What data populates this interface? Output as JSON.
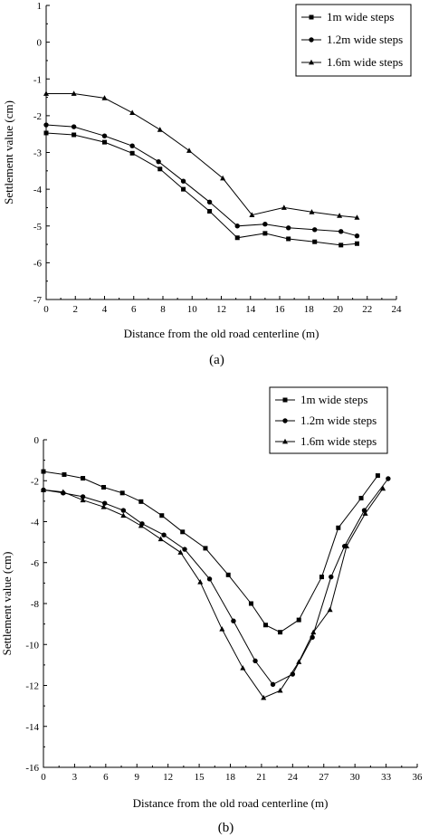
{
  "chart_data": [
    {
      "type": "line",
      "panel_label": "(a)",
      "xlabel": "Distance from the old road centerline (m)",
      "ylabel": "Settlement value (cm)",
      "xlim": [
        0,
        24
      ],
      "ylim": [
        -7,
        1
      ],
      "xticks": [
        0,
        2,
        4,
        6,
        8,
        10,
        12,
        14,
        16,
        18,
        20,
        22,
        24
      ],
      "yticks": [
        1,
        0,
        -1,
        -2,
        -3,
        -4,
        -5,
        -6,
        -7
      ],
      "legend_position": "top-right",
      "series": [
        {
          "name": "1m wide steps",
          "marker": "square",
          "points": [
            [
              0,
              -2.47
            ],
            [
              1.9,
              -2.52
            ],
            [
              4,
              -2.72
            ],
            [
              5.9,
              -3.02
            ],
            [
              7.8,
              -3.45
            ],
            [
              9.4,
              -4.0
            ],
            [
              11.2,
              -4.6
            ],
            [
              13.1,
              -5.32
            ],
            [
              15,
              -5.2
            ],
            [
              16.6,
              -5.35
            ],
            [
              18.4,
              -5.43
            ],
            [
              20.2,
              -5.52
            ],
            [
              21.3,
              -5.48
            ]
          ]
        },
        {
          "name": "1.2m wide steps",
          "marker": "circle",
          "points": [
            [
              0,
              -2.25
            ],
            [
              1.9,
              -2.3
            ],
            [
              4,
              -2.55
            ],
            [
              5.9,
              -2.82
            ],
            [
              7.7,
              -3.25
            ],
            [
              9.4,
              -3.78
            ],
            [
              11.2,
              -4.35
            ],
            [
              13.1,
              -5.0
            ],
            [
              15,
              -4.95
            ],
            [
              16.6,
              -5.05
            ],
            [
              18.4,
              -5.1
            ],
            [
              20.2,
              -5.15
            ],
            [
              21.3,
              -5.27
            ]
          ]
        },
        {
          "name": "1.6m wide steps",
          "marker": "triangle",
          "points": [
            [
              0,
              -1.4
            ],
            [
              1.9,
              -1.4
            ],
            [
              4,
              -1.52
            ],
            [
              5.9,
              -1.92
            ],
            [
              7.8,
              -2.38
            ],
            [
              9.8,
              -2.95
            ],
            [
              12.1,
              -3.7
            ],
            [
              14.1,
              -4.7
            ],
            [
              16.3,
              -4.5
            ],
            [
              18.2,
              -4.62
            ],
            [
              20.1,
              -4.72
            ],
            [
              21.3,
              -4.77
            ]
          ]
        }
      ]
    },
    {
      "type": "line",
      "panel_label": "(b)",
      "xlabel": "Distance from the old road centerline (m)",
      "ylabel": "Settlement value (cm)",
      "xlim": [
        0,
        36
      ],
      "ylim": [
        -16,
        0
      ],
      "xticks": [
        0,
        3,
        6,
        9,
        12,
        15,
        18,
        21,
        24,
        27,
        30,
        33,
        36
      ],
      "yticks": [
        0,
        -2,
        -4,
        -6,
        -8,
        -10,
        -12,
        -14,
        -16
      ],
      "legend_position": "top-right",
      "series": [
        {
          "name": "1m wide steps",
          "marker": "square",
          "points": [
            [
              0,
              -1.55
            ],
            [
              2,
              -1.7
            ],
            [
              3.8,
              -1.88
            ],
            [
              5.8,
              -2.32
            ],
            [
              7.6,
              -2.6
            ],
            [
              9.4,
              -3.02
            ],
            [
              11.4,
              -3.7
            ],
            [
              13.4,
              -4.5
            ],
            [
              15.6,
              -5.3
            ],
            [
              17.8,
              -6.6
            ],
            [
              20,
              -8.0
            ],
            [
              21.4,
              -9.05
            ],
            [
              22.8,
              -9.4
            ],
            [
              24.6,
              -8.8
            ],
            [
              26.8,
              -6.7
            ],
            [
              28.4,
              -4.3
            ],
            [
              30.6,
              -2.85
            ],
            [
              32.2,
              -1.75
            ]
          ]
        },
        {
          "name": "1.2m wide steps",
          "marker": "circle",
          "points": [
            [
              0,
              -2.45
            ],
            [
              1.9,
              -2.6
            ],
            [
              3.8,
              -2.78
            ],
            [
              5.9,
              -3.1
            ],
            [
              7.7,
              -3.45
            ],
            [
              9.5,
              -4.1
            ],
            [
              11.6,
              -4.65
            ],
            [
              13.6,
              -5.35
            ],
            [
              16,
              -6.8
            ],
            [
              18.3,
              -8.85
            ],
            [
              20.4,
              -10.8
            ],
            [
              22.1,
              -11.95
            ],
            [
              24,
              -11.45
            ],
            [
              25.9,
              -9.65
            ],
            [
              27.7,
              -6.7
            ],
            [
              29,
              -5.2
            ],
            [
              30.9,
              -3.45
            ],
            [
              33.2,
              -1.9
            ]
          ]
        },
        {
          "name": "1.6m wide steps",
          "marker": "triangle",
          "points": [
            [
              0,
              -2.45
            ],
            [
              1.9,
              -2.55
            ],
            [
              3.8,
              -2.95
            ],
            [
              5.8,
              -3.28
            ],
            [
              7.7,
              -3.7
            ],
            [
              9.4,
              -4.2
            ],
            [
              11.3,
              -4.85
            ],
            [
              13.2,
              -5.5
            ],
            [
              15.1,
              -6.95
            ],
            [
              17.2,
              -9.25
            ],
            [
              19.2,
              -11.15
            ],
            [
              21.2,
              -12.6
            ],
            [
              22.8,
              -12.25
            ],
            [
              24.6,
              -10.85
            ],
            [
              26,
              -9.4
            ],
            [
              27.6,
              -8.3
            ],
            [
              29.2,
              -5.2
            ],
            [
              31,
              -3.6
            ],
            [
              32.7,
              -2.38
            ]
          ]
        }
      ]
    }
  ]
}
